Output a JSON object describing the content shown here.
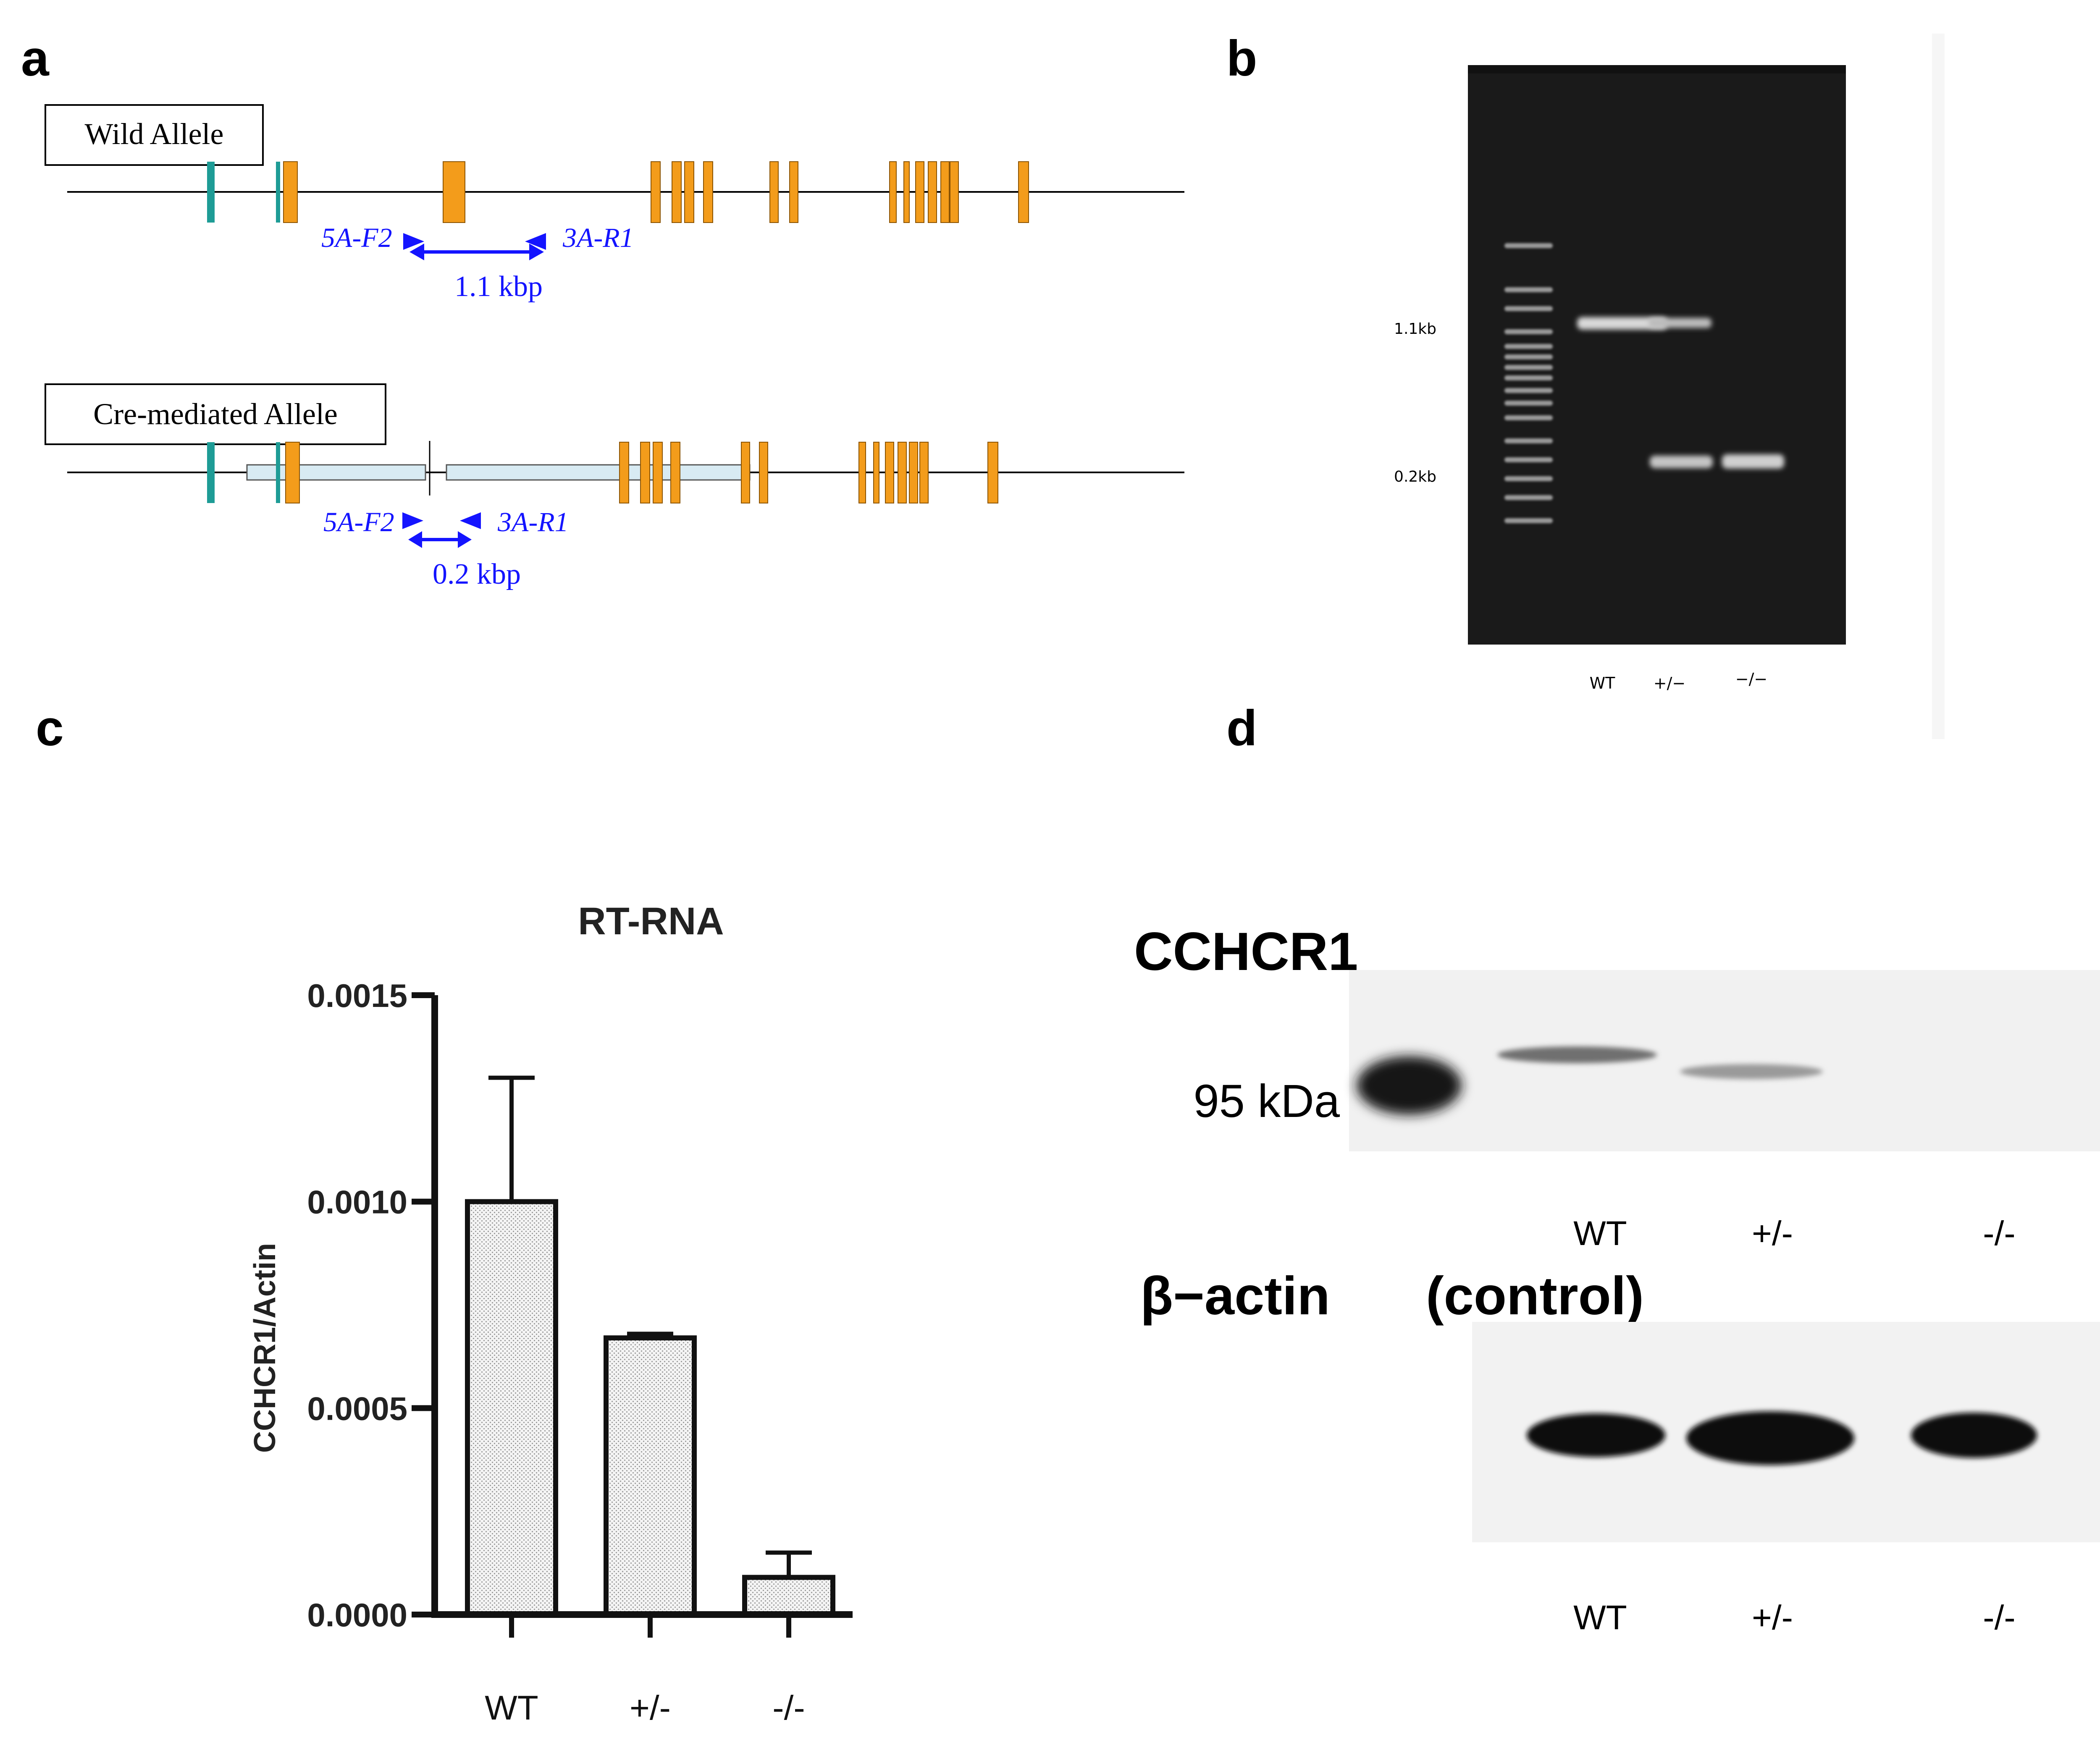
{
  "panels": {
    "a": {
      "letter": "a",
      "wild_allele": {
        "label": "Wild Allele",
        "primer_forward": "5A-F2",
        "primer_reverse": "3A-R1",
        "product_size": "1.1 kbp"
      },
      "cre_allele": {
        "label": "Cre-mediated Allele",
        "primer_forward": "5A-F2",
        "primer_reverse": "3A-R1",
        "product_size": "0.2 kbp"
      },
      "colors": {
        "exon": "#f39c1b",
        "exon_edge": "#8a5200",
        "utr": "#1e9c96",
        "vector": "#d8ebf3",
        "primer": "#1414ff"
      }
    },
    "b": {
      "letter": "b",
      "marker_labels": [
        "1.1kb",
        "0.2kb"
      ],
      "lanes": [
        "WT",
        "+/−",
        "−/−"
      ]
    },
    "c": {
      "letter": "c"
    },
    "d": {
      "letter": "d",
      "blot1_title": "CCHCR1",
      "blot1_marker": "95 kDa",
      "blot1_lanes": [
        "WT",
        "+/-",
        "-/-"
      ],
      "blot2_title_part1": "β−actin",
      "blot2_title_part2": "(control)",
      "blot2_lanes": [
        "WT",
        "+/-",
        "-/-"
      ]
    }
  },
  "chart_data": {
    "type": "bar",
    "title": "RT-RNA",
    "ylabel": "CCHCR1/Actin",
    "xlabel": "",
    "categories": [
      "WT",
      "+/-",
      "-/-"
    ],
    "values": [
      0.001,
      0.00067,
      9e-05
    ],
    "error_upper": [
      0.0013,
      0.00068,
      0.00015
    ],
    "ylim": [
      0,
      0.0015
    ],
    "yticks": [
      "0.0000",
      "0.0005",
      "0.0010",
      "0.0015"
    ],
    "grid": false,
    "bar_fill": "stippled light grey"
  }
}
